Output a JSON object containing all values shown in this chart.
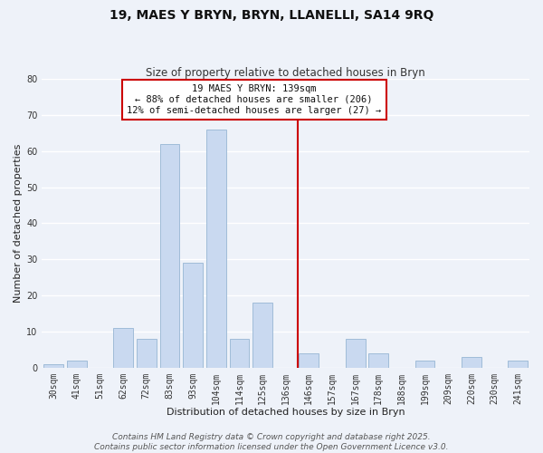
{
  "title": "19, MAES Y BRYN, BRYN, LLANELLI, SA14 9RQ",
  "subtitle": "Size of property relative to detached houses in Bryn",
  "xlabel": "Distribution of detached houses by size in Bryn",
  "ylabel": "Number of detached properties",
  "bar_labels": [
    "30sqm",
    "41sqm",
    "51sqm",
    "62sqm",
    "72sqm",
    "83sqm",
    "93sqm",
    "104sqm",
    "114sqm",
    "125sqm",
    "136sqm",
    "146sqm",
    "157sqm",
    "167sqm",
    "178sqm",
    "188sqm",
    "199sqm",
    "209sqm",
    "220sqm",
    "230sqm",
    "241sqm"
  ],
  "bar_values": [
    1,
    2,
    0,
    11,
    8,
    62,
    29,
    66,
    8,
    18,
    0,
    4,
    0,
    8,
    4,
    0,
    2,
    0,
    3,
    0,
    2
  ],
  "bar_color": "#c9d9f0",
  "bar_edge_color": "#a0bcd8",
  "vline_color": "#cc0000",
  "ylim": [
    0,
    80
  ],
  "yticks": [
    0,
    10,
    20,
    30,
    40,
    50,
    60,
    70,
    80
  ],
  "annotation_title": "19 MAES Y BRYN: 139sqm",
  "annotation_line1": "← 88% of detached houses are smaller (206)",
  "annotation_line2": "12% of semi-detached houses are larger (27) →",
  "footer_line1": "Contains HM Land Registry data © Crown copyright and database right 2025.",
  "footer_line2": "Contains public sector information licensed under the Open Government Licence v3.0.",
  "background_color": "#eef2f9",
  "grid_color": "#ffffff",
  "title_fontsize": 10,
  "subtitle_fontsize": 8.5,
  "axis_label_fontsize": 8,
  "tick_fontsize": 7,
  "annotation_fontsize": 7.5,
  "footer_fontsize": 6.5
}
